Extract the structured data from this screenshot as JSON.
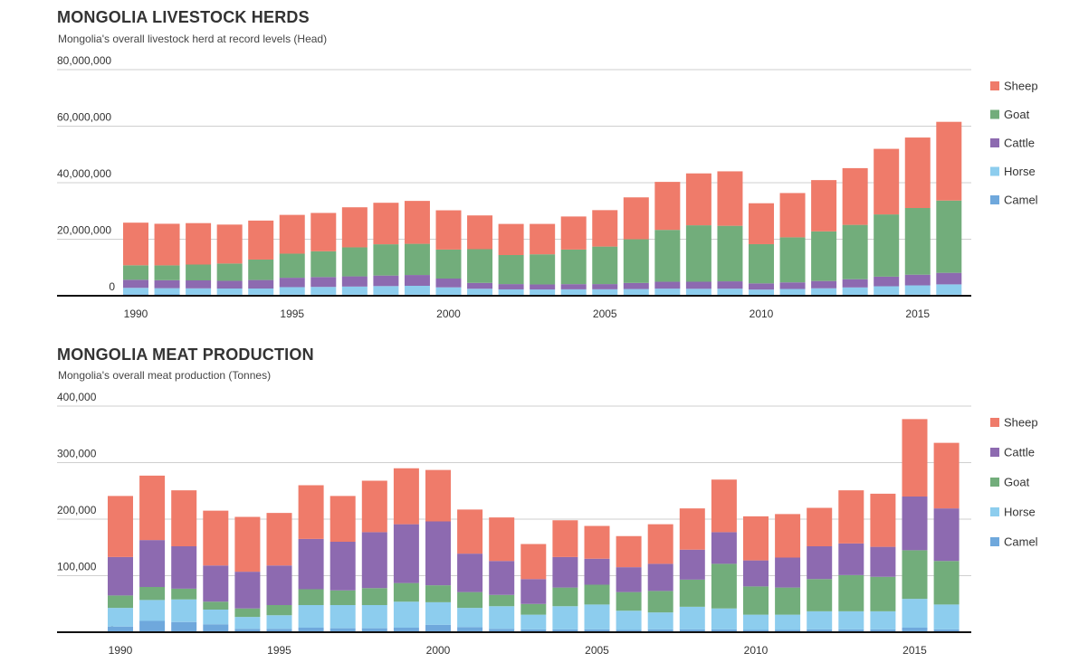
{
  "chart_data": [
    {
      "type": "bar",
      "stacked": true,
      "title": "MONGOLIA LIVESTOCK HERDS",
      "subtitle": "Mongolia's overall livestock herd at record levels (Head)",
      "xlabel": "",
      "ylabel": "",
      "ylim": [
        0,
        80000000
      ],
      "yticks": [
        0,
        20000000,
        40000000,
        60000000,
        80000000
      ],
      "ytick_labels": [
        "0",
        "20,000,000",
        "40,000,000",
        "60,000,000",
        "80,000,000"
      ],
      "xticks": [
        1990,
        1995,
        2000,
        2005,
        2010,
        2015
      ],
      "grid": true,
      "legend_position": "right",
      "legend_order": [
        "Sheep",
        "Goat",
        "Cattle",
        "Horse",
        "Camel"
      ],
      "categories": [
        1990,
        1991,
        1992,
        1993,
        1994,
        1995,
        1996,
        1997,
        1998,
        1999,
        2000,
        2001,
        2002,
        2003,
        2004,
        2005,
        2006,
        2007,
        2008,
        2009,
        2010,
        2011,
        2012,
        2013,
        2014,
        2015,
        2016
      ],
      "series": [
        {
          "name": "Camel",
          "color": "#6fa8dc",
          "values": [
            540000,
            480000,
            420000,
            370000,
            370000,
            370000,
            360000,
            360000,
            360000,
            360000,
            320000,
            290000,
            260000,
            250000,
            260000,
            260000,
            260000,
            280000,
            270000,
            280000,
            270000,
            280000,
            310000,
            320000,
            350000,
            370000,
            400000
          ]
        },
        {
          "name": "Horse",
          "color": "#8dcdee",
          "values": [
            2260000,
            2200000,
            2200000,
            2190000,
            2190000,
            2680000,
            2770000,
            2890000,
            3060000,
            3160000,
            2660000,
            2190000,
            1990000,
            1970000,
            2010000,
            2030000,
            2110000,
            2240000,
            2190000,
            2220000,
            1920000,
            2110000,
            2330000,
            2620000,
            3000000,
            3300000,
            3630000
          ]
        },
        {
          "name": "Cattle",
          "color": "#8d6ab0",
          "values": [
            2850000,
            2820000,
            2820000,
            2730000,
            3010000,
            3320000,
            3480000,
            3610000,
            3730000,
            3820000,
            3100000,
            2070000,
            1880000,
            1790000,
            1840000,
            1840000,
            2170000,
            2430000,
            2500000,
            2600000,
            2180000,
            2340000,
            2580000,
            2910000,
            3410000,
            3780000,
            4080000
          ]
        },
        {
          "name": "Goat",
          "color": "#72ad7b",
          "values": [
            5130000,
            5250000,
            5600000,
            6110000,
            7240000,
            8520000,
            9130000,
            10270000,
            11060000,
            11030000,
            10270000,
            11930000,
            10270000,
            10650000,
            12240000,
            13270000,
            15450000,
            18350000,
            19970000,
            19650000,
            13880000,
            15940000,
            17560000,
            19230000,
            22010000,
            23590000,
            25570000
          ]
        },
        {
          "name": "Sheep",
          "color": "#ef7b6a",
          "values": [
            15080000,
            14720000,
            14660000,
            13780000,
            13790000,
            13720000,
            13560000,
            14170000,
            14690000,
            15190000,
            13880000,
            11940000,
            11010000,
            10760000,
            11690000,
            12890000,
            14820000,
            16990000,
            18360000,
            19270000,
            14480000,
            15670000,
            18140000,
            20070000,
            23210000,
            24940000,
            27860000
          ]
        }
      ]
    },
    {
      "type": "bar",
      "stacked": true,
      "title": "MONGOLIA MEAT PRODUCTION",
      "subtitle": "Mongolia's overall meat production (Tonnes)",
      "xlabel": "",
      "ylabel": "",
      "ylim": [
        0,
        400000
      ],
      "yticks": [
        0,
        100000,
        200000,
        300000,
        400000
      ],
      "ytick_labels": [
        "0",
        "100,000",
        "200,000",
        "300,000",
        "400,000"
      ],
      "xticks": [
        1990,
        1995,
        2000,
        2005,
        2010,
        2015
      ],
      "grid": true,
      "legend_position": "right",
      "legend_order": [
        "Sheep",
        "Cattle",
        "Goat",
        "Horse",
        "Camel"
      ],
      "categories": [
        1990,
        1991,
        1992,
        1993,
        1994,
        1995,
        1996,
        1997,
        1998,
        1999,
        2000,
        2001,
        2002,
        2003,
        2004,
        2005,
        2006,
        2007,
        2008,
        2009,
        2010,
        2011,
        2012,
        2013,
        2014,
        2015,
        2016
      ],
      "series": [
        {
          "name": "Camel",
          "color": "#6fa8dc",
          "values": [
            10000,
            20000,
            18000,
            14000,
            6000,
            6000,
            8000,
            7000,
            7000,
            8000,
            13000,
            9000,
            6000,
            5000,
            5000,
            5000,
            4000,
            5000,
            5000,
            5000,
            4000,
            4000,
            5000,
            5000,
            5000,
            8000,
            5000
          ]
        },
        {
          "name": "Horse",
          "color": "#8dcdee",
          "values": [
            33000,
            37000,
            40000,
            26000,
            21000,
            24000,
            40000,
            41000,
            41000,
            46000,
            40000,
            34000,
            40000,
            26000,
            41000,
            44000,
            34000,
            30000,
            40000,
            37000,
            27000,
            27000,
            32000,
            32000,
            32000,
            51000,
            44000
          ]
        },
        {
          "name": "Goat",
          "color": "#72ad7b",
          "values": [
            22000,
            23000,
            19000,
            14000,
            15000,
            18000,
            28000,
            26000,
            30000,
            33000,
            30000,
            28000,
            20000,
            19000,
            33000,
            35000,
            33000,
            38000,
            48000,
            79000,
            50000,
            48000,
            57000,
            64000,
            61000,
            86000,
            77000
          ]
        },
        {
          "name": "Cattle",
          "color": "#8d6ab0",
          "values": [
            68000,
            83000,
            75000,
            64000,
            65000,
            70000,
            89000,
            86000,
            99000,
            104000,
            113000,
            68000,
            60000,
            44000,
            54000,
            46000,
            44000,
            48000,
            53000,
            56000,
            46000,
            53000,
            58000,
            56000,
            53000,
            95000,
            93000
          ]
        },
        {
          "name": "Sheep",
          "color": "#ef7b6a",
          "values": [
            108000,
            114000,
            99000,
            97000,
            97000,
            93000,
            95000,
            81000,
            91000,
            99000,
            91000,
            78000,
            77000,
            62000,
            65000,
            58000,
            55000,
            70000,
            73000,
            93000,
            78000,
            77000,
            68000,
            94000,
            94000,
            137000,
            116000
          ]
        }
      ]
    }
  ]
}
